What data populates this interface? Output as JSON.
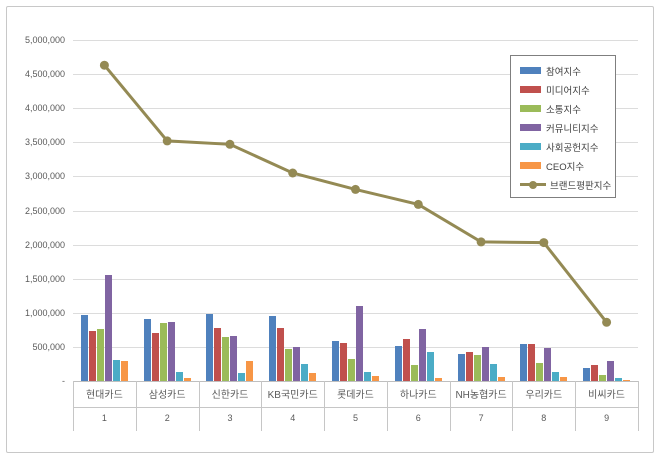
{
  "chart_data": {
    "type": "grouped-bar+line",
    "title": "",
    "categories": [
      "현대카드",
      "삼성카드",
      "신한카드",
      "KB국민카드",
      "롯데카드",
      "하나카드",
      "NH농협카드",
      "우리카드",
      "비씨카드"
    ],
    "category_ranks": [
      "1",
      "2",
      "3",
      "4",
      "5",
      "6",
      "7",
      "8",
      "9"
    ],
    "y_axis": {
      "min": 0,
      "max": 5000000,
      "step": 500000,
      "tick_labels": [
        "-",
        "500,000",
        "1,000,000",
        "1,500,000",
        "2,000,000",
        "2,500,000",
        "3,000,000",
        "3,500,000",
        "4,000,000",
        "4,500,000",
        "5,000,000"
      ]
    },
    "grid": true,
    "legend_position": "top-right-inside",
    "series": [
      {
        "name": "참여지수",
        "type": "bar",
        "color": "#4F81BD",
        "values": [
          970000,
          910000,
          980000,
          950000,
          590000,
          510000,
          400000,
          540000,
          190000
        ]
      },
      {
        "name": "미디어지수",
        "type": "bar",
        "color": "#C0504D",
        "values": [
          740000,
          710000,
          780000,
          780000,
          560000,
          620000,
          420000,
          540000,
          230000
        ]
      },
      {
        "name": "소통지수",
        "type": "bar",
        "color": "#9BBB59",
        "values": [
          760000,
          850000,
          640000,
          475000,
          330000,
          240000,
          385000,
          270000,
          90000
        ]
      },
      {
        "name": "커뮤니티지수",
        "type": "bar",
        "color": "#8064A2",
        "values": [
          1560000,
          870000,
          660000,
          500000,
          1100000,
          760000,
          500000,
          480000,
          290000
        ]
      },
      {
        "name": "사회공헌지수",
        "type": "bar",
        "color": "#4BACC6",
        "values": [
          310000,
          140000,
          120000,
          255000,
          140000,
          420000,
          250000,
          140000,
          50000
        ]
      },
      {
        "name": "CEO지수",
        "type": "bar",
        "color": "#F79646",
        "values": [
          300000,
          40000,
          290000,
          120000,
          70000,
          50000,
          60000,
          60000,
          20000
        ]
      },
      {
        "name": "브랜드평판지수",
        "type": "line",
        "color": "#948A54",
        "values": [
          4630000,
          3520000,
          3470000,
          3050000,
          2810000,
          2590000,
          2040000,
          2030000,
          860000
        ]
      }
    ]
  },
  "palette": {
    "grid": "#DCDCDC",
    "axis": "#BFBFBF",
    "text": "#595959",
    "legend_border": "#7F7F7F",
    "background": "#FFFFFF"
  }
}
